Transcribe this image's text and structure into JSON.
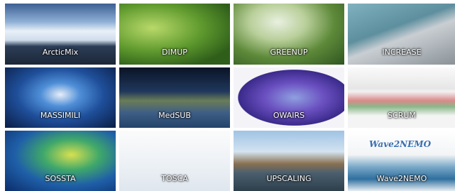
{
  "tiles": [
    {
      "label": "ArcticMix"
    },
    {
      "label": "DIMUP"
    },
    {
      "label": "GREENUP"
    },
    {
      "label": "INCREASE"
    },
    {
      "label": "MASSIMILI"
    },
    {
      "label": "MedSUB"
    },
    {
      "label": "OWAIRS"
    },
    {
      "label": "SCRUM"
    },
    {
      "label": "SOSSTA"
    },
    {
      "label": "TOSCA"
    },
    {
      "label": "UPSCALING"
    },
    {
      "label": "Wave2NEMO",
      "logo": "Wave2NEMO"
    }
  ]
}
